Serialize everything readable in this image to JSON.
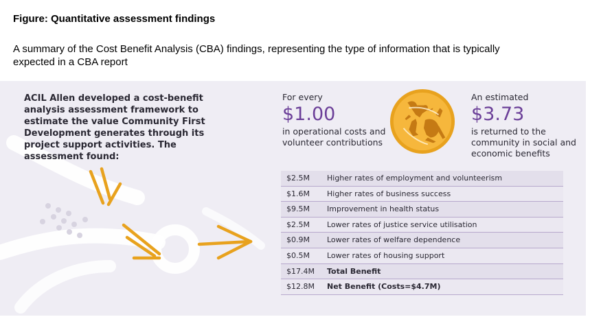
{
  "figure": {
    "title": "Figure: Quantitative assessment findings",
    "description": "A summary of the Cost Benefit Analysis (CBA) findings, representing the type of information that is typically expected in a CBA report"
  },
  "panel": {
    "intro": "ACIL Allen developed a cost-benefit analysis assessment framework to estimate the value Community First Development generates through its project support activities. The assessment found:",
    "left": {
      "lead": "For every",
      "amount": "$1.00",
      "caption": "in operational costs and volunteer contributions"
    },
    "right": {
      "lead": "An estimated",
      "amount": "$3.73",
      "caption": "is returned to the community in social and economic benefits"
    },
    "table": {
      "rows": [
        {
          "amount": "$2.5M",
          "description": "Higher rates of employment and volunteerism"
        },
        {
          "amount": "$1.6M",
          "description": "Higher rates of business success"
        },
        {
          "amount": "$9.5M",
          "description": "Improvement in health status"
        },
        {
          "amount": "$2.5M",
          "description": "Lower rates of justice service utilisation"
        },
        {
          "amount": "$0.9M",
          "description": "Lower rates of welfare dependence"
        },
        {
          "amount": "$0.5M",
          "description": "Lower rates of housing support"
        },
        {
          "amount": "$17.4M",
          "description": "Total Benefit"
        },
        {
          "amount": "$12.8M",
          "description": "Net Benefit (Costs=$4.7M)"
        }
      ]
    }
  },
  "colors": {
    "panel_bg": "#efedf4",
    "accent_purple": "#6b3f98",
    "accent_gold": "#e8a21e",
    "row_border": "#b7a8cc"
  },
  "icons": {
    "medal": "kangaroo-medal-icon",
    "arrows": "chevron-arrows-icon"
  }
}
